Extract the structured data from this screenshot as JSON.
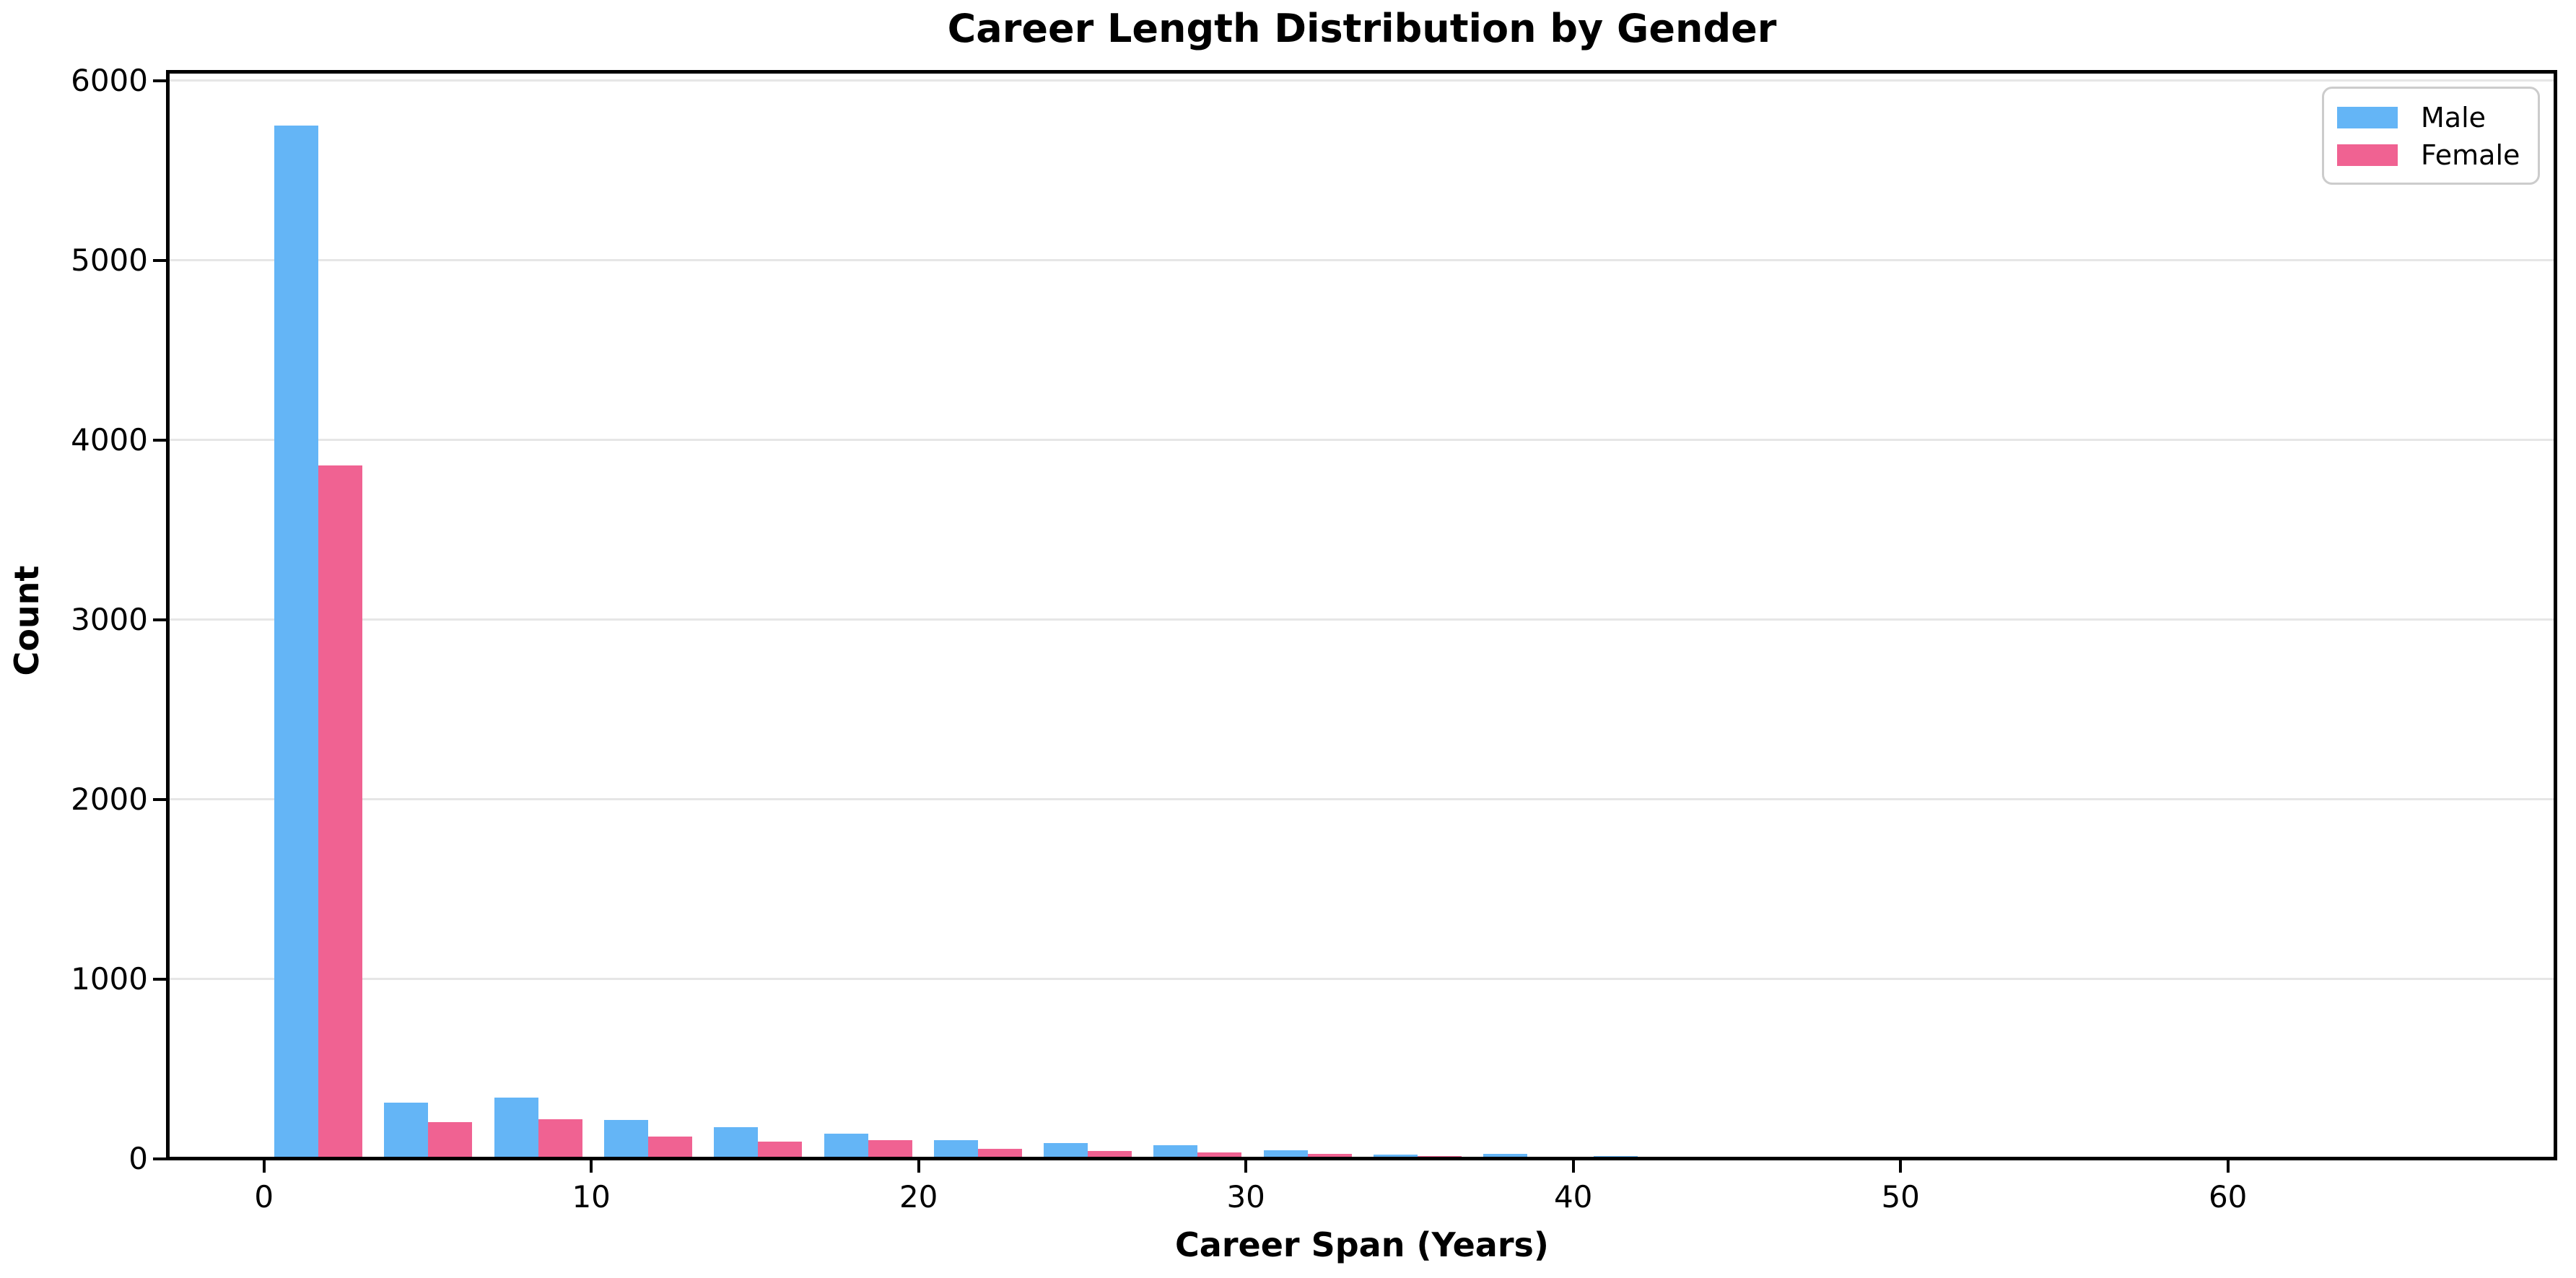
{
  "title": "Career Length Distribution by Gender",
  "chart_data": {
    "type": "bar",
    "subtype": "grouped-histogram",
    "title": "Career Length Distribution by Gender",
    "xlabel": "Career Span (Years)",
    "ylabel": "Count",
    "grid": "horizontal-only",
    "legend_position": "upper-right",
    "x_ticks": [
      0,
      10,
      20,
      30,
      40,
      50,
      60
    ],
    "y_ticks": [
      0,
      1000,
      2000,
      3000,
      4000,
      5000,
      6000
    ],
    "xlim": [
      -3,
      70
    ],
    "ylim": [
      0,
      6040
    ],
    "bin_width_years": 3.36,
    "first_bin_start_years": 0.3,
    "bin_centers_years": [
      2.0,
      5.3,
      8.7,
      12.1,
      15.4,
      18.8,
      22.1,
      25.5,
      28.8,
      32.2,
      35.6,
      38.9,
      42.3,
      45.6,
      49.0
    ],
    "series": [
      {
        "name": "Male",
        "color": "#64B5F6",
        "values": [
          5750,
          314,
          342,
          218,
          175,
          139,
          105,
          88,
          77,
          48,
          24,
          28,
          18,
          10,
          10
        ]
      },
      {
        "name": "Female",
        "color": "#F06292",
        "values": [
          3860,
          206,
          221,
          124,
          96,
          105,
          57,
          44,
          36,
          27,
          17,
          11,
          4,
          2,
          0
        ]
      }
    ]
  },
  "legend": {
    "items": [
      {
        "label": "Male",
        "color": "#64B5F6"
      },
      {
        "label": "Female",
        "color": "#F06292"
      }
    ]
  },
  "colors": {
    "male": "#64B5F6",
    "female": "#F06292",
    "gridline": "#e6e6e6",
    "axis": "#000000",
    "background": "#ffffff"
  }
}
